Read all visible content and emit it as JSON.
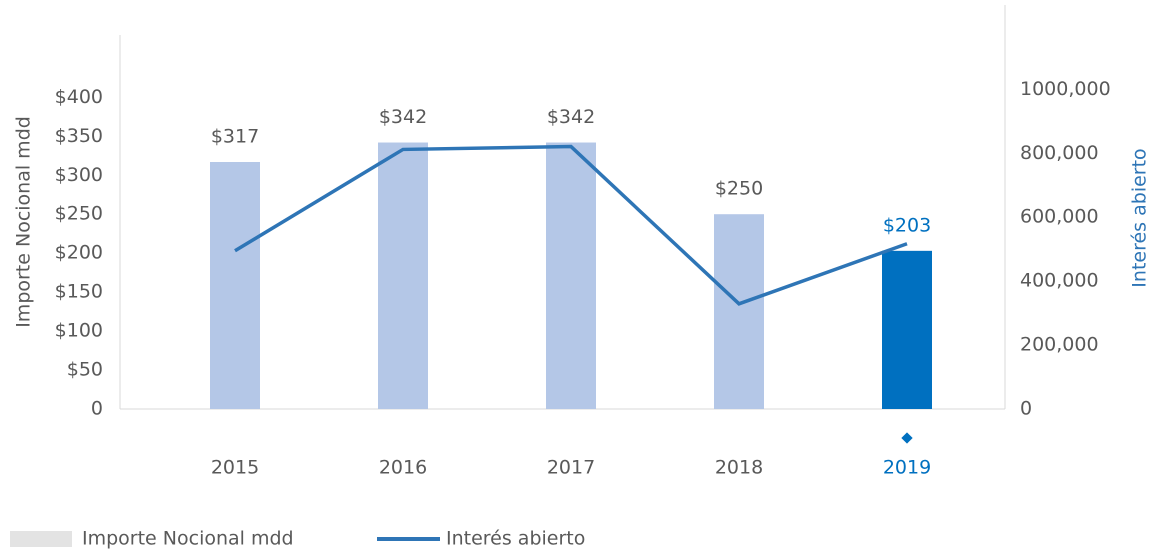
{
  "chart_data": {
    "type": "bar_line",
    "categories": [
      "2015",
      "2016",
      "2017",
      "2018",
      "2019"
    ],
    "series": [
      {
        "name": "Importe Nocional mdd",
        "type": "bar",
        "colors": [
          "#b4c7e7",
          "#b4c7e7",
          "#b4c7e7",
          "#b4c7e7",
          "#0070c0"
        ],
        "values": [
          317,
          342,
          342,
          250,
          203
        ],
        "value_labels": [
          "$317",
          "$342",
          "$342",
          "$250",
          "$203"
        ]
      },
      {
        "name": "Interés abierto",
        "type": "line",
        "axis": "y2",
        "color": "#2e75b6",
        "values": [
          495000,
          812000,
          821000,
          329000,
          517000
        ]
      }
    ],
    "highlight_color": "#0070c0",
    "ylabel": "Importe Nocional mdd",
    "y2label": "Interés abierto",
    "ylim": [
      0,
      480
    ],
    "yticks": [
      0,
      {
        "value": 50,
        "label": "$50"
      },
      {
        "value": 100,
        "label": "$100"
      },
      {
        "value": 150,
        "label": "$150"
      },
      {
        "value": 200,
        "label": "$200"
      },
      {
        "value": 250,
        "label": "$250"
      },
      {
        "value": 300,
        "label": "$300"
      },
      {
        "value": 350,
        "label": "$350"
      },
      {
        "value": 400,
        "label": "$400"
      }
    ],
    "y2lim": [
      0,
      1170000
    ],
    "y2ticks": [
      0,
      {
        "value": 200000,
        "label": "200,000"
      },
      {
        "value": 400000,
        "label": "400,000"
      },
      {
        "value": 600000,
        "label": "600,000"
      },
      {
        "value": 800000,
        "label": "800,000"
      },
      {
        "value": 1000000,
        "label": "1000,000"
      }
    ],
    "legend": "bottom-left"
  }
}
